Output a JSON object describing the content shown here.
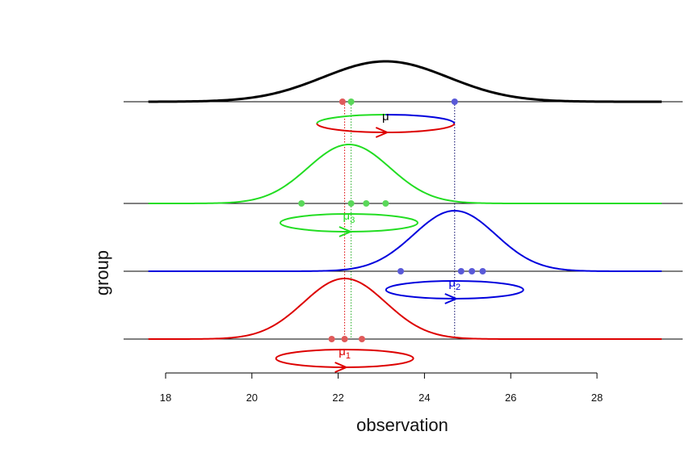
{
  "chart_data": {
    "type": "line",
    "title": "",
    "xlabel": "observation",
    "ylabel": "group",
    "xlim": [
      17.6,
      29.5
    ],
    "x_axis_ticks": [
      18,
      20,
      22,
      24,
      26,
      28
    ],
    "x_tick_labels": [
      "18",
      "20",
      "22",
      "24",
      "26",
      "28"
    ],
    "curve_x_range": [
      17.6,
      29.5
    ],
    "series": [
      {
        "key": "overall",
        "color": "#000000",
        "mean": 23.1,
        "sd": 1.45,
        "points": [
          22.1,
          22.3,
          24.7
        ],
        "point_colors": [
          "#e05a5a",
          "#5ad85a",
          "#5a5ad8"
        ],
        "label": "μ",
        "label_sub": ""
      },
      {
        "key": "group3",
        "color": "#22dd22",
        "mean": 22.25,
        "sd": 0.95,
        "points": [
          21.15,
          22.3,
          22.65,
          23.1
        ],
        "point_colors": [
          "#5ad85a",
          "#5ad85a",
          "#5ad85a",
          "#5ad85a"
        ],
        "label": "μ",
        "label_sub": "3"
      },
      {
        "key": "group2",
        "color": "#0000dd",
        "mean": 24.7,
        "sd": 0.95,
        "points": [
          23.45,
          24.85,
          25.1,
          25.35
        ],
        "point_colors": [
          "#5a5ad8",
          "#5a5ad8",
          "#5a5ad8",
          "#5a5ad8"
        ],
        "label": "μ",
        "label_sub": "2"
      },
      {
        "key": "group1",
        "color": "#dd0000",
        "mean": 22.15,
        "sd": 0.95,
        "points": [
          21.85,
          22.15,
          22.55
        ],
        "point_colors": [
          "#e05a5a",
          "#e05a5a",
          "#e05a5a"
        ],
        "label": "μ",
        "label_sub": "1"
      }
    ],
    "reference_lines": [
      {
        "x": 22.15,
        "color": "#dd0000"
      },
      {
        "x": 22.3,
        "color": "#22aa22"
      },
      {
        "x": 24.7,
        "color": "#000066"
      }
    ]
  }
}
